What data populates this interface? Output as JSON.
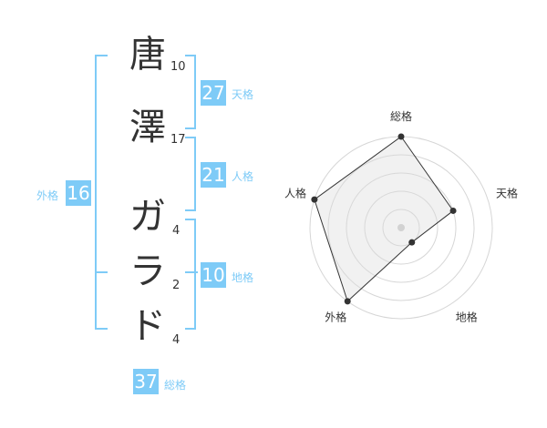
{
  "name_chars": [
    {
      "char": "唐",
      "strokes": "10"
    },
    {
      "char": "澤",
      "strokes": "17"
    },
    {
      "char": "ガ",
      "strokes": "4"
    },
    {
      "char": "ラ",
      "strokes": "2"
    },
    {
      "char": "ド",
      "strokes": "4"
    }
  ],
  "kaku": {
    "tenkaku": {
      "label": "天格",
      "value": "27"
    },
    "jinkaku": {
      "label": "人格",
      "value": "21"
    },
    "chikaku": {
      "label": "地格",
      "value": "10"
    },
    "gaikaku": {
      "label": "外格",
      "value": "16"
    },
    "soukaku": {
      "label": "総格",
      "value": "37"
    }
  },
  "accent_color": "#7ecbf7",
  "chart_data": {
    "type": "radar",
    "axes": [
      "総格",
      "天格",
      "地格",
      "外格",
      "人格"
    ],
    "values": [
      5,
      3,
      1,
      5,
      5
    ],
    "range": [
      0,
      5
    ],
    "rings": 5
  }
}
